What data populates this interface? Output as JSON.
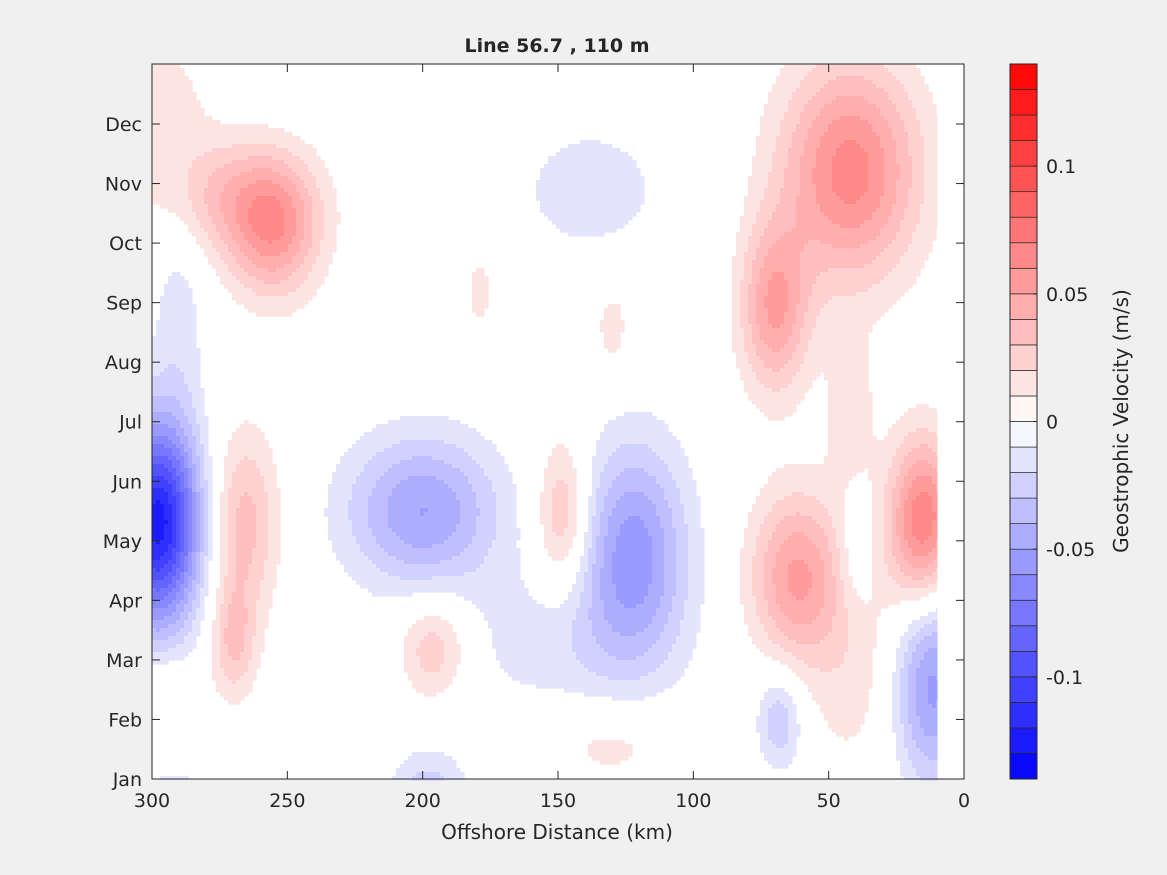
{
  "chart_data": {
    "type": "contour",
    "title": "Line 56.7 , 110 m",
    "xlabel": "Offshore Distance (km)",
    "ylabel": "",
    "x_reversed": true,
    "xlim": [
      0,
      300
    ],
    "xticks": [
      300,
      250,
      200,
      150,
      100,
      50,
      0
    ],
    "ytick_labels": [
      "Jan",
      "Feb",
      "Mar",
      "Apr",
      "May",
      "Jun",
      "Jul",
      "Aug",
      "Sep",
      "Oct",
      "Nov",
      "Dec"
    ],
    "x_data_range": [
      10,
      300
    ],
    "colorbar": {
      "label": "Geostrophic Velocity (m/s)",
      "limits": [
        -0.14,
        0.14
      ],
      "levels": 28,
      "ticks": [
        -0.1,
        -0.05,
        0,
        0.05,
        0.1
      ],
      "tick_labels": [
        "-0.1",
        "-0.05",
        "0",
        "0.05",
        "0.1"
      ],
      "colormap": [
        "#0000ff",
        "#ffffff",
        "#ff0000"
      ]
    },
    "features": [
      {
        "x": 298,
        "month": 5.3,
        "value": -0.125,
        "sx": 11,
        "sm": 1.2
      },
      {
        "x": 296,
        "month": 12.4,
        "value": 0.015,
        "sx": 12,
        "sm": 0.8
      },
      {
        "x": 290,
        "month": 9.0,
        "value": -0.015,
        "sx": 7,
        "sm": 1.4
      },
      {
        "x": 296,
        "month": 2.5,
        "value": 0.015,
        "sx": 8,
        "sm": 0.4
      },
      {
        "x": 292,
        "month": 0.7,
        "value": -0.012,
        "sx": 14,
        "sm": 0.6
      },
      {
        "x": 266,
        "month": 5.3,
        "value": 0.035,
        "sx": 9,
        "sm": 1.1
      },
      {
        "x": 270,
        "month": 3.3,
        "value": 0.03,
        "sx": 6,
        "sm": 0.7
      },
      {
        "x": 272,
        "month": 10.8,
        "value": 0.03,
        "sx": 20,
        "sm": 0.7
      },
      {
        "x": 255,
        "month": 10.2,
        "value": 0.05,
        "sx": 12,
        "sm": 0.8
      },
      {
        "x": 200,
        "month": 5.5,
        "value": -0.05,
        "sx": 20,
        "sm": 0.9
      },
      {
        "x": 196,
        "month": 3.2,
        "value": 0.03,
        "sx": 9,
        "sm": 0.6
      },
      {
        "x": 198,
        "month": 0.6,
        "value": -0.03,
        "sx": 10,
        "sm": 0.6
      },
      {
        "x": 179,
        "month": 9.2,
        "value": 0.015,
        "sx": 4,
        "sm": 0.5
      },
      {
        "x": 148,
        "month": 5.4,
        "value": 0.035,
        "sx": 7,
        "sm": 0.9
      },
      {
        "x": 150,
        "month": 3.3,
        "value": -0.015,
        "sx": 28,
        "sm": 0.9
      },
      {
        "x": 122,
        "month": 4.8,
        "value": -0.055,
        "sx": 14,
        "sm": 1.3
      },
      {
        "x": 138,
        "month": 10.9,
        "value": -0.015,
        "sx": 22,
        "sm": 0.9
      },
      {
        "x": 130,
        "month": 8.6,
        "value": 0.015,
        "sx": 5,
        "sm": 0.6
      },
      {
        "x": 130,
        "month": 1.6,
        "value": 0.015,
        "sx": 18,
        "sm": 0.5
      },
      {
        "x": 70,
        "month": 8.9,
        "value": 0.05,
        "sx": 9,
        "sm": 1.0
      },
      {
        "x": 42,
        "month": 11.2,
        "value": 0.065,
        "sx": 18,
        "sm": 1.3
      },
      {
        "x": 62,
        "month": 4.4,
        "value": 0.05,
        "sx": 12,
        "sm": 1.0
      },
      {
        "x": 68,
        "month": 2.0,
        "value": -0.03,
        "sx": 6,
        "sm": 0.6
      },
      {
        "x": 40,
        "month": 3.0,
        "value": 0.015,
        "sx": 14,
        "sm": 1.5
      },
      {
        "x": 42,
        "month": 7.2,
        "value": 0.015,
        "sx": 7,
        "sm": 0.9
      },
      {
        "x": 40,
        "month": 4.7,
        "value": -0.015,
        "sx": 5,
        "sm": 0.7
      },
      {
        "x": 15,
        "month": 5.3,
        "value": 0.07,
        "sx": 9,
        "sm": 1.0
      },
      {
        "x": 12,
        "month": 2.6,
        "value": -0.055,
        "sx": 10,
        "sm": 1.2
      }
    ]
  }
}
